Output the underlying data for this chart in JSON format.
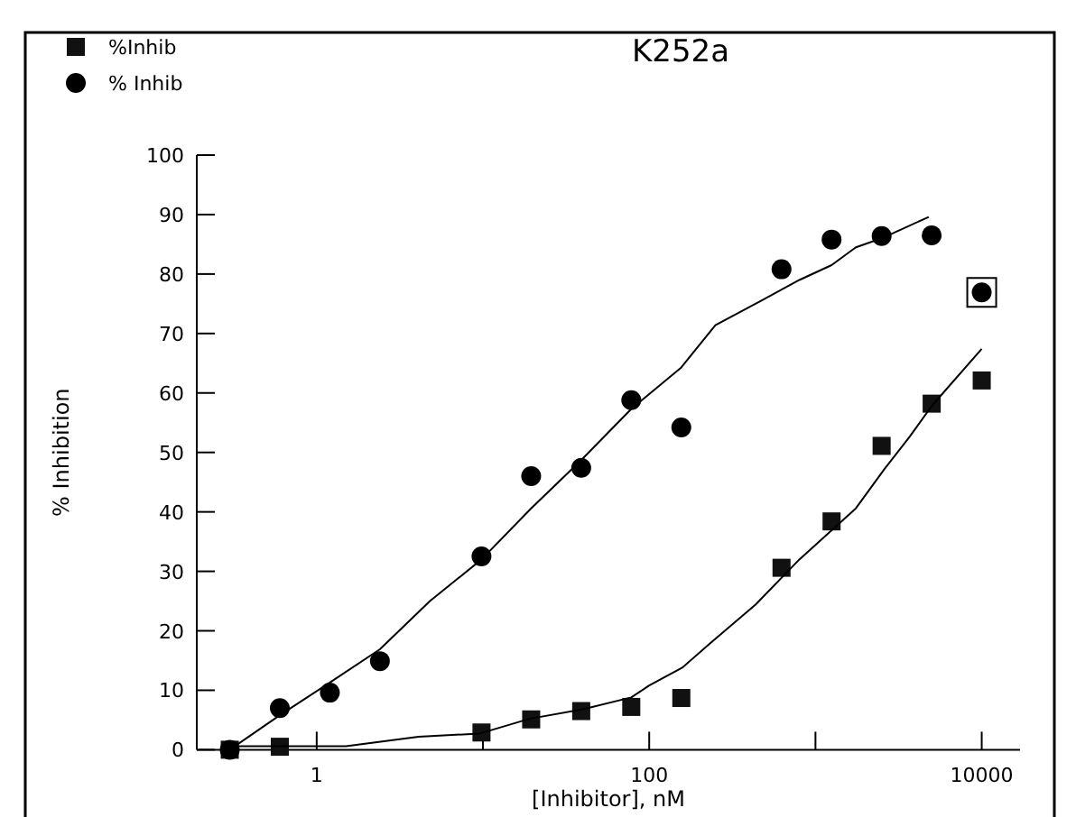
{
  "chart_data": {
    "type": "scatter",
    "title": "K252a",
    "xlabel": "[Inhibitor], nM",
    "ylabel": "% Inhibition",
    "log": "x",
    "xlim": [
      0.19,
      17000
    ],
    "xticks": [
      1,
      {
        "value": 10,
        "label": null
      },
      100,
      {
        "value": 1000,
        "label": null
      },
      10000
    ],
    "ylim": [
      0,
      100
    ],
    "yticks": [
      0,
      10,
      20,
      30,
      40,
      50,
      60,
      70,
      80,
      90,
      100
    ],
    "grid": false,
    "legend": "top left",
    "series": [
      {
        "name": "%Inhib",
        "color": "#111111",
        "marker": "square",
        "x": [
          0.3,
          0.6,
          9.8,
          19.5,
          39,
          78,
          156,
          625,
          1250,
          2500,
          5000,
          10000
        ],
        "values": [
          0,
          0.5,
          2.9,
          5.1,
          6.5,
          7.2,
          8.7,
          30.6,
          38.4,
          51.1,
          58.2,
          62.1
        ]
      },
      {
        "name": "% Inhib",
        "color": "#000000",
        "marker": "circle",
        "x": [
          0.3,
          0.6,
          1.2,
          2.4,
          9.8,
          19.5,
          39,
          78,
          156,
          625,
          1250,
          2500,
          5000,
          10000
        ],
        "values": [
          0,
          7,
          9.6,
          14.9,
          32.5,
          46,
          47.4,
          58.8,
          54.2,
          80.8,
          85.8,
          86.4,
          86.5,
          76.9
        ]
      },
      {
        "type": "line",
        "color": "#000000",
        "marker": "none",
        "x": [
          0.3,
          0.6,
          1.2,
          2.4,
          4.8,
          9.8,
          19.5,
          39,
          78,
          156,
          250,
          470,
          800,
          1250,
          1750,
          2500,
          4800
        ],
        "values": [
          0,
          5.8,
          11.3,
          16.9,
          25,
          32,
          40.6,
          48.7,
          57.3,
          64.3,
          71.4,
          75.5,
          79,
          81.5,
          84.5,
          86,
          89.6
        ]
      },
      {
        "type": "line",
        "color": "#000000",
        "marker": "none",
        "x": [
          0.3,
          1.5,
          4.1,
          9.5,
          19,
          40,
          78,
          100,
          158,
          233,
          436,
          800,
          1750,
          2600,
          3700,
          5000,
          10000
        ],
        "values": [
          0.6,
          0.6,
          2.2,
          2.7,
          5.2,
          6.8,
          8.8,
          10.8,
          13.8,
          17.9,
          24.4,
          32,
          40.6,
          47.2,
          52.7,
          57.8,
          67.4
        ]
      }
    ]
  }
}
